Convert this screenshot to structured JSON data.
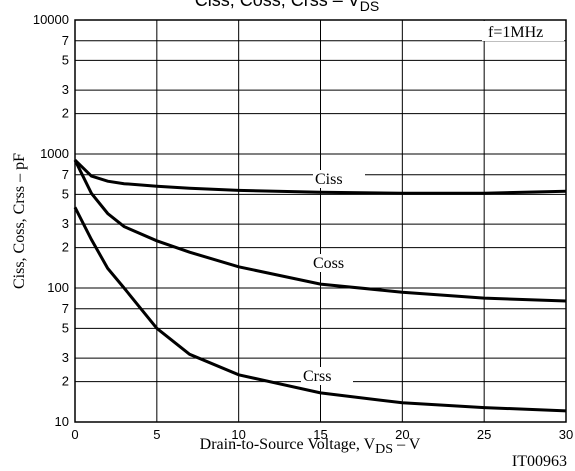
{
  "chart_data": {
    "type": "line",
    "title": [
      "Ciss, Coss, Crss  –  V",
      "DS"
    ],
    "x_label": [
      "Drain-to-Source Voltage, V",
      "DS",
      "  –  V"
    ],
    "y_label": "Ciss, Coss, Crss  –  pF",
    "annotations": [
      "f=1MHz",
      "IT00963"
    ],
    "log_y": true,
    "grid": true,
    "xlim": [
      0,
      30
    ],
    "xticks": [
      0,
      5,
      10,
      15,
      20,
      25,
      30
    ],
    "ylim": [
      10,
      10000
    ],
    "yticks": [
      10,
      {
        "value": 20,
        "label": "2"
      },
      {
        "value": 30,
        "label": "3"
      },
      {
        "value": 50,
        "label": "5"
      },
      {
        "value": 70,
        "label": "7"
      },
      100,
      {
        "value": 200,
        "label": "2"
      },
      {
        "value": 300,
        "label": "3"
      },
      {
        "value": 500,
        "label": "5"
      },
      {
        "value": 700,
        "label": "7"
      },
      1000,
      {
        "value": 2000,
        "label": "2"
      },
      {
        "value": 3000,
        "label": "3"
      },
      {
        "value": 5000,
        "label": "5"
      },
      {
        "value": 7000,
        "label": "7"
      },
      10000
    ],
    "x": [
      0,
      1,
      2,
      3,
      5,
      7,
      10,
      15,
      20,
      25,
      30
    ],
    "series": [
      {
        "name": "Ciss",
        "color": "#000000",
        "values": [
          900,
          684,
          627,
          600,
          575,
          555,
          535,
          518,
          510,
          510,
          528
        ]
      },
      {
        "name": "Coss",
        "color": "#000000",
        "values": [
          900,
          509,
          360,
          287,
          225,
          185,
          144,
          107,
          93,
          84,
          80
        ]
      },
      {
        "name": "Crss",
        "color": "#000000",
        "values": [
          400,
          230,
          140,
          100,
          50,
          32,
          22.5,
          16.5,
          13.9,
          12.8,
          12.1
        ]
      }
    ]
  }
}
